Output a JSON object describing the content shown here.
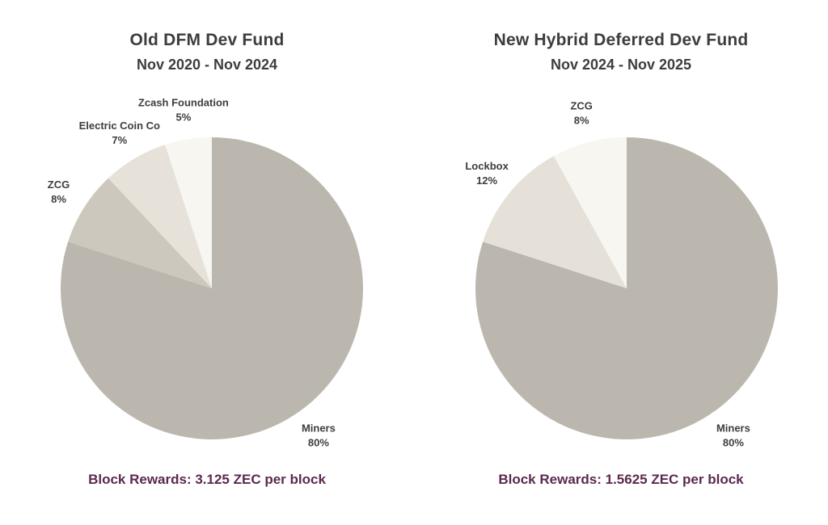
{
  "page": {
    "background_color": "#ffffff",
    "text_color": "#3d3d3d",
    "caption_color": "#5b294d"
  },
  "chart_data": [
    {
      "type": "pie",
      "title": "Old DFM Dev Fund",
      "subtitle": "Nov 2020 - Nov 2024",
      "caption": "Block Rewards: 3.125 ZEC per block",
      "start_angle": 90,
      "direction": "clockwise",
      "label_distance": 1.2,
      "slices": [
        {
          "label": "Miners",
          "value": 80,
          "color": "#bcb7ae"
        },
        {
          "label": "ZCG",
          "value": 8,
          "color": "#cdc8bd"
        },
        {
          "label": "Electric Coin Co",
          "value": 7,
          "color": "#e6e2d9"
        },
        {
          "label": "Zcash Foundation",
          "value": 5,
          "color": "#f7f6f1"
        }
      ]
    },
    {
      "type": "pie",
      "title": "New Hybrid Deferred Dev Fund",
      "subtitle": "Nov 2024 - Nov 2025",
      "caption": "Block Rewards: 1.5625 ZEC per block",
      "start_angle": 90,
      "direction": "clockwise",
      "label_distance": 1.2,
      "slices": [
        {
          "label": "Miners",
          "value": 80,
          "color": "#bcb7ae"
        },
        {
          "label": "Lockbox",
          "value": 12,
          "color": "#e5e1d8"
        },
        {
          "label": "ZCG",
          "value": 8,
          "color": "#f7f6f1"
        }
      ]
    }
  ]
}
